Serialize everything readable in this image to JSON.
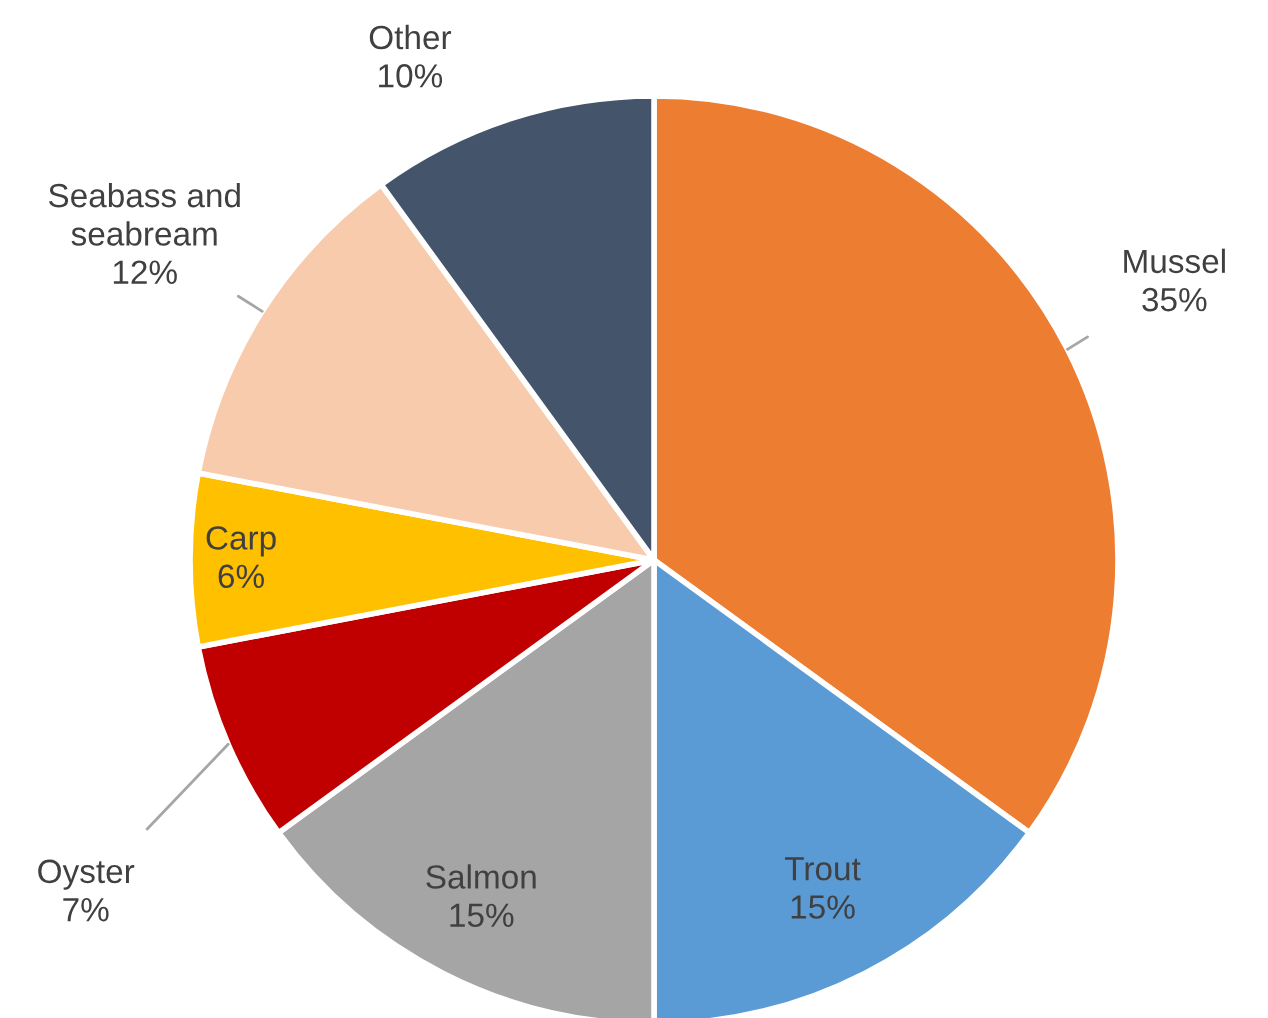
{
  "chart_data": {
    "type": "pie",
    "categories": [
      "Mussel",
      "Trout",
      "Salmon",
      "Oyster",
      "Carp",
      "Seabass and seabream",
      "Other"
    ],
    "values": [
      35,
      15,
      15,
      7,
      6,
      12,
      10
    ],
    "value_labels": [
      "35%",
      "15%",
      "15%",
      "7%",
      "6%",
      "12%",
      "10%"
    ],
    "colors": [
      "#ed7d31",
      "#5b9bd5",
      "#a5a5a5",
      "#c00000",
      "#ffc000",
      "#f8cbad",
      "#44546a"
    ],
    "legend": false
  }
}
